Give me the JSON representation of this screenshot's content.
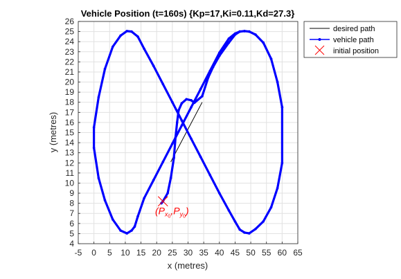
{
  "chart_data": {
    "type": "line",
    "title": "Vehicle Position (t=160s) {Kp=17,Ki=0.11,Kd=27.3}",
    "xlabel": "x (metres)",
    "ylabel": "y (metres)",
    "xlim": [
      -5,
      65
    ],
    "ylim": [
      4,
      26
    ],
    "xticks": [
      -5,
      0,
      5,
      10,
      15,
      20,
      25,
      30,
      35,
      40,
      45,
      50,
      55,
      60,
      65
    ],
    "yticks": [
      4,
      5,
      6,
      7,
      8,
      9,
      10,
      11,
      12,
      13,
      14,
      15,
      16,
      17,
      18,
      19,
      20,
      21,
      22,
      23,
      24,
      25,
      26
    ],
    "grid": true,
    "legend_location": "outside top-right",
    "series": [
      {
        "name": "desired path",
        "color": "#000000",
        "style": "thin-line",
        "x": [
          24.5,
          34.5
        ],
        "y": [
          12.1,
          18.0
        ]
      },
      {
        "name": "vehicle path",
        "color": "#0000ff",
        "style": "thick-line-dots",
        "x": [
          21.5,
          22,
          23.5,
          24.5,
          25.5,
          26,
          26.5,
          27,
          28,
          29.5,
          31,
          32,
          34.5,
          36.5,
          38,
          40,
          43,
          45,
          46.5,
          48,
          49.5,
          51.5,
          54,
          56.5,
          58.5,
          60,
          60,
          58.5,
          56.5,
          54,
          51.5,
          49.5,
          48,
          46.5,
          45,
          43,
          40,
          37,
          34,
          31,
          28,
          25,
          22,
          19,
          16,
          14,
          12,
          10.5,
          8.5,
          6,
          3.5,
          1.5,
          0,
          0,
          1.5,
          3.5,
          6,
          8.5,
          10.5,
          12,
          13,
          14,
          16,
          19,
          22,
          25,
          28,
          31,
          34,
          37,
          40,
          43,
          45,
          46.5,
          48,
          49.5,
          51.5,
          54,
          56.5,
          58.5,
          60
        ],
        "y": [
          8.0,
          8.2,
          9.0,
          10.5,
          12.5,
          14.5,
          16.0,
          17.2,
          17.9,
          18.3,
          18.2,
          17.95,
          18.6,
          20.5,
          21.5,
          22.6,
          23.9,
          24.7,
          25.0,
          25.05,
          25.0,
          24.7,
          23.9,
          22.3,
          20.0,
          17.5,
          12.0,
          9.5,
          7.6,
          6.2,
          5.45,
          5.02,
          5.1,
          5.4,
          6.2,
          7.3,
          9.0,
          10.8,
          12.6,
          14.4,
          16.2,
          18.0,
          19.8,
          21.6,
          23.3,
          24.5,
          25.0,
          25.05,
          24.6,
          23.5,
          21.3,
          18.5,
          15.5,
          13.5,
          10.5,
          8.3,
          6.4,
          5.3,
          5.02,
          5.3,
          5.7,
          6.7,
          8.5,
          10.3,
          12.1,
          13.9,
          15.7,
          17.5,
          19.3,
          21.1,
          22.9,
          24.3,
          24.8,
          25.0,
          25.05,
          25.0,
          24.7,
          23.9,
          22.3,
          20.0,
          17.5
        ]
      },
      {
        "name": "initial position",
        "color": "#ff0000",
        "style": "x-marker",
        "x": [
          22
        ],
        "y": [
          8.2
        ]
      }
    ],
    "annotation": {
      "text_main": "(P",
      "sub1": "x",
      "sub1b": "0",
      "sep": ",P",
      "sub2": "y",
      "sub2b": "0",
      "close": ")",
      "color": "#ff0000",
      "x": 19.5,
      "y": 6.9
    }
  }
}
